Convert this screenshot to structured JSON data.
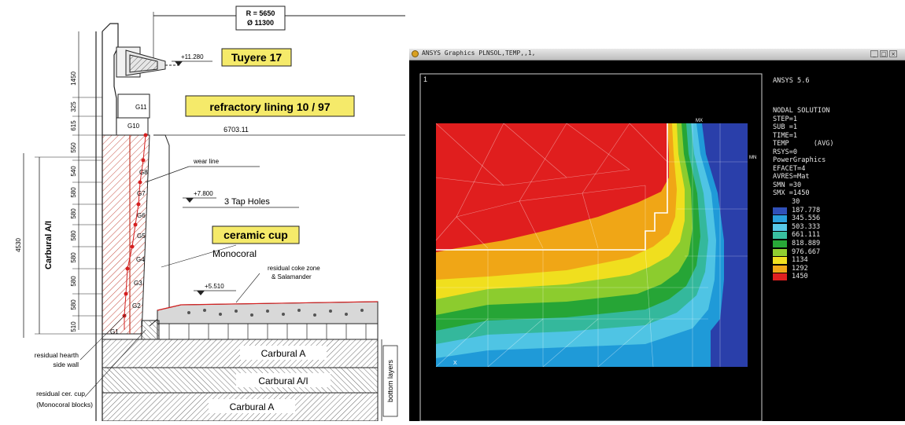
{
  "left_drawing": {
    "dimension_radius": "R = 5650",
    "dimension_diameter": "Ø 11300",
    "tuyere_label": "Tuyere 17",
    "tuyere_level": "+11.280",
    "lining_label": "refractory lining 10 / 97",
    "inner_dimension": "6703.11",
    "wear_line_label": "wear line",
    "taphole_level": "+7.800",
    "taphole_label": "3 Tap Holes",
    "ceramic_cup_label": "ceramic cup",
    "monocoral_label": "Monocoral",
    "coke_zone_label_1": "residual coke zone",
    "coke_zone_label_2": "& Salamander",
    "coke_level": "+5.510",
    "left_vertical_label": "Carbural A/I",
    "total_height": "4530",
    "side_dims": [
      "1450",
      "325",
      "615",
      "550",
      "540",
      "580",
      "580",
      "580",
      "580",
      "580",
      "580",
      "510"
    ],
    "ring_labels": [
      "G11",
      "G10",
      "G8",
      "G7",
      "G6",
      "G5",
      "G4",
      "G3",
      "G2",
      "G1"
    ],
    "bottom_layers": [
      "Carbural A",
      "Carbural A/I",
      "Carbural A"
    ],
    "bottom_layers_label": "bottom layers",
    "residual_hearth_1": "residual hearth",
    "residual_hearth_2": "side wall",
    "residual_cup_1": "residual cer. cup",
    "residual_cup_2": "(Monocoral blocks)"
  },
  "ansys_window": {
    "title": "ANSYS Graphics  PLNSOL,TEMP,,1,",
    "window_buttons": [
      "_",
      "□",
      "×"
    ],
    "window_number": "1",
    "version": "ANSYS 5.6",
    "info_lines": [
      "NODAL SOLUTION",
      "STEP=1",
      "SUB =1",
      "TIME=1",
      "TEMP      (AVG)",
      "RSYS=0",
      "PowerGraphics",
      "EFACET=4",
      "AVRES=Mat",
      "SMN =30",
      "SMX =1450"
    ],
    "mx_label": "MX",
    "mn_label": "MN",
    "axis_label": "X",
    "legend": [
      {
        "value": "30",
        "color": ""
      },
      {
        "value": "187.778",
        "color": "#3050b8"
      },
      {
        "value": "345.556",
        "color": "#2aa0dc"
      },
      {
        "value": "503.333",
        "color": "#58c8e8"
      },
      {
        "value": "661.111",
        "color": "#38c0a0"
      },
      {
        "value": "818.889",
        "color": "#28a838"
      },
      {
        "value": "976.667",
        "color": "#90d030"
      },
      {
        "value": "1134",
        "color": "#f0e020"
      },
      {
        "value": "1292",
        "color": "#f0a818"
      },
      {
        "value": "1450",
        "color": "#e02020"
      }
    ]
  }
}
